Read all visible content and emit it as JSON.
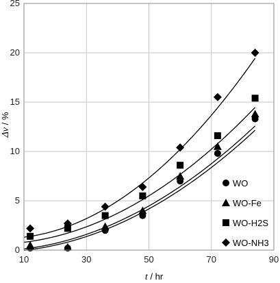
{
  "chart_data": {
    "type": "scatter",
    "x_label_var": "t",
    "x_label_unit": " / hr",
    "y_label_var": "Δv",
    "y_label_unit": " / %",
    "xlim": [
      10,
      90
    ],
    "ylim": [
      0,
      25
    ],
    "x_ticks": [
      10,
      30,
      50,
      70,
      90
    ],
    "y_ticks": [
      0,
      5,
      10,
      15,
      20,
      25
    ],
    "grid": true,
    "legend_position": "bottom-right",
    "series": [
      {
        "name": "WO",
        "marker": "circle",
        "color": "#000000",
        "points": [
          [
            12,
            0.2
          ],
          [
            24,
            0.2
          ],
          [
            36,
            2.0
          ],
          [
            48,
            3.5
          ],
          [
            60,
            7.0
          ],
          [
            72,
            9.8
          ],
          [
            84,
            13.3
          ]
        ],
        "fit": [
          0.00175,
          0.0,
          -0.2
        ]
      },
      {
        "name": "WO-Fe",
        "marker": "triangle",
        "color": "#000000",
        "points": [
          [
            12,
            0.5
          ],
          [
            24,
            0.3
          ],
          [
            36,
            2.4
          ],
          [
            48,
            4.0
          ],
          [
            60,
            7.5
          ],
          [
            72,
            10.5
          ],
          [
            84,
            13.8
          ]
        ],
        "fit": [
          0.00175,
          0.004,
          -0.1
        ]
      },
      {
        "name": "WO-H2S",
        "marker": "square",
        "color": "#000000",
        "points": [
          [
            12,
            1.4
          ],
          [
            24,
            2.2
          ],
          [
            36,
            3.5
          ],
          [
            48,
            5.5
          ],
          [
            60,
            8.6
          ],
          [
            72,
            11.6
          ],
          [
            84,
            15.4
          ]
        ],
        "fit": [
          0.00197,
          -0.0004,
          0.6
        ]
      },
      {
        "name": "WO-NH3",
        "marker": "diamond",
        "color": "#000000",
        "points": [
          [
            12,
            2.2
          ],
          [
            24,
            2.7
          ],
          [
            36,
            4.4
          ],
          [
            48,
            6.4
          ],
          [
            60,
            10.4
          ],
          [
            72,
            15.5
          ],
          [
            84,
            20.0
          ]
        ],
        "fit": [
          0.00279,
          -0.0172,
          1.2
        ]
      }
    ]
  }
}
